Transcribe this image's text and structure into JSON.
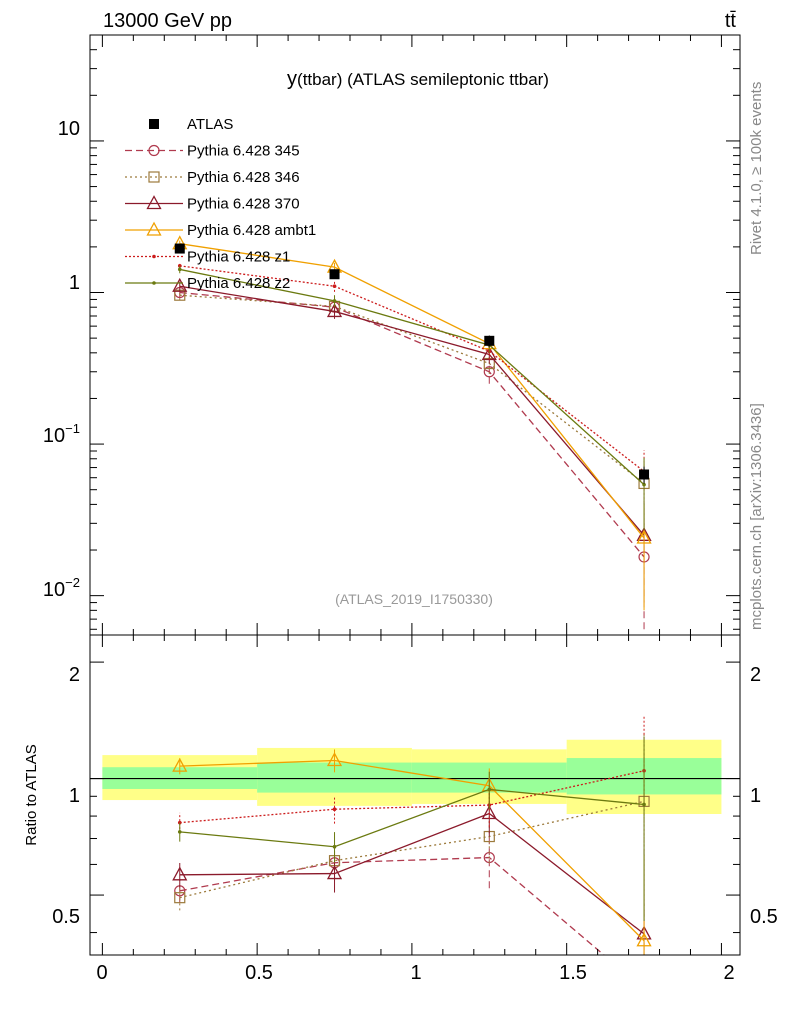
{
  "header": {
    "energy_label": "13000 GeV pp",
    "process_label": "tt̄",
    "rivet_label": "Rivet 4.1.0, ≥ 100k events",
    "source_label": "mcplots.cern.ch [arXiv:1306.3436]",
    "analysis_id": "(ATLAS_2019_I1750330)"
  },
  "chart_data": {
    "type": "line",
    "title": "y(ttbar) (ATLAS semileptonic ttbar)",
    "title_main": "y",
    "title_paren": "(ttbar)",
    "title_rest": " (ATLAS semileptonic ttbar)",
    "xlabel": "",
    "ylabel_ratio": "Ratio to ATLAS",
    "xlim": [
      -0.04,
      2.06
    ],
    "ylim_main": [
      0.0055,
      50
    ],
    "ylim_ratio": [
      0.35,
      2.35
    ],
    "x_ticks": [
      "0",
      "0.5",
      "1",
      "1.5",
      "2"
    ],
    "y_ticks_main": [
      "10",
      "1",
      "10−1",
      "10−2"
    ],
    "y_ticks_ratio": [
      "2",
      "1",
      "0.5"
    ],
    "bins": [
      [
        0,
        0.5
      ],
      [
        0.5,
        1.0
      ],
      [
        1.0,
        1.5
      ],
      [
        1.5,
        2.0
      ]
    ],
    "x": [
      0.25,
      0.75,
      1.25,
      1.75
    ],
    "data": {
      "name": "ATLAS",
      "values": [
        1.95,
        1.32,
        0.48,
        0.063
      ],
      "errors": [
        0.08,
        0.09,
        0.04,
        0.008
      ],
      "band_inner": [
        [
          0.94,
          1.07
        ],
        [
          0.92,
          1.1
        ],
        [
          0.92,
          1.1
        ],
        [
          0.91,
          1.13
        ]
      ],
      "band_outer": [
        [
          0.88,
          1.15
        ],
        [
          0.85,
          1.2
        ],
        [
          0.86,
          1.19
        ],
        [
          0.81,
          1.26
        ]
      ]
    },
    "series": [
      {
        "name": "Pythia 6.428 345",
        "color": "#b03a4e",
        "dash": "7,4",
        "marker": "circle",
        "values": [
          1.0,
          0.8,
          0.3,
          0.018
        ],
        "errors": [
          0.07,
          0.08,
          0.05,
          0.012
        ]
      },
      {
        "name": "Pythia 6.428 346",
        "color": "#9c7a3c",
        "dash": "2,3",
        "marker": "square",
        "values": [
          0.96,
          0.81,
          0.34,
          0.055
        ],
        "errors": [
          0.07,
          0.08,
          0.05,
          0.028
        ]
      },
      {
        "name": "Pythia 6.428 370",
        "color": "#8b1a2b",
        "dash": "",
        "marker": "triangle",
        "values": [
          1.1,
          0.75,
          0.39,
          0.025
        ],
        "errors": [
          0.08,
          0.08,
          0.05,
          0.016
        ]
      },
      {
        "name": "Pythia 6.428 ambt1",
        "color": "#f0a000",
        "dash": "",
        "marker": "triangle",
        "values": [
          2.1,
          1.47,
          0.46,
          0.024
        ],
        "errors": [
          0.1,
          0.1,
          0.05,
          0.016
        ]
      },
      {
        "name": "Pythia 6.428 z1",
        "color": "#cc1c1c",
        "dash": "2,2",
        "marker": "dot",
        "values": [
          1.5,
          1.1,
          0.41,
          0.066
        ],
        "errors": [
          0.09,
          0.09,
          0.05,
          0.025
        ]
      },
      {
        "name": "Pythia 6.428 z2",
        "color": "#6b7a10",
        "dash": "",
        "marker": "dot",
        "values": [
          1.42,
          0.88,
          0.45,
          0.054
        ],
        "errors": [
          0.08,
          0.08,
          0.05,
          0.027
        ]
      }
    ]
  }
}
